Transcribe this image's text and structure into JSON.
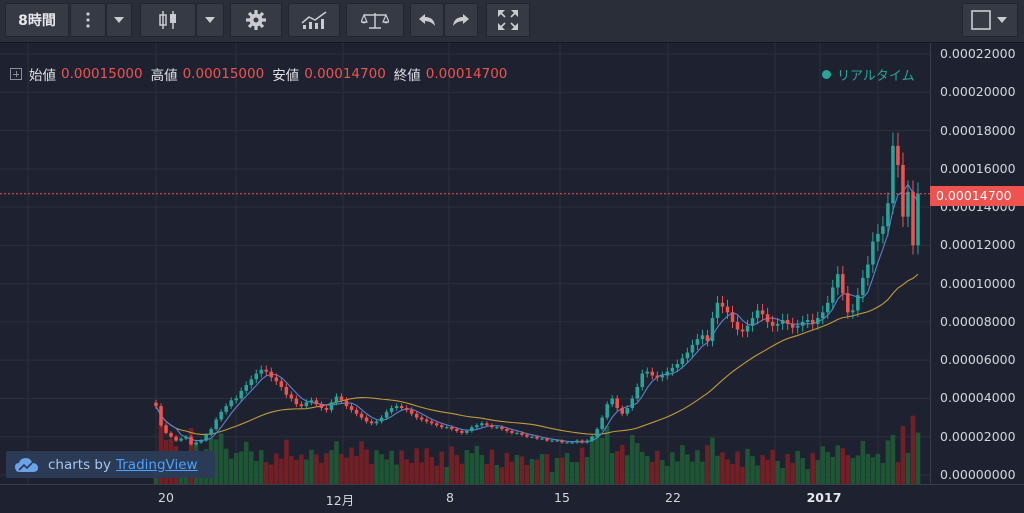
{
  "toolbar": {
    "interval_label": "8時間",
    "buttons": [
      "more-menu",
      "interval-dropdown",
      "candle-style",
      "style-dropdown",
      "settings",
      "indicators",
      "compare",
      "undo",
      "redo",
      "fullscreen",
      "layout-dropdown"
    ]
  },
  "legend": {
    "open_label": "始値",
    "open_value": "0.00015000",
    "high_label": "高値",
    "high_value": "0.00015000",
    "low_label": "安値",
    "low_value": "0.00014700",
    "close_label": "終値",
    "close_value": "0.00014700"
  },
  "realtime_label": "リアルタイム",
  "last_price_tag": "0.00014700",
  "branding": {
    "prefix": "charts by",
    "link": "TradingView"
  },
  "colors": {
    "up": "#26a69a",
    "down": "#ef5350",
    "background": "#1e2230",
    "ma_fast": "#5b7fd0",
    "ma_slow": "#c29a3a"
  },
  "chart_data": {
    "type": "candlestick",
    "y_ticks": [
      "0.00022000",
      "0.00020000",
      "0.00018000",
      "0.00016000",
      "0.00014000",
      "0.00012000",
      "0.00010000",
      "0.00008000",
      "0.00006000",
      "0.00004000",
      "0.00002000",
      "0.00000000"
    ],
    "ylim": [
      0,
      0.00022
    ],
    "x_ticks": [
      "20",
      "12月",
      "8",
      "15",
      "22",
      "2017"
    ],
    "last_price": 0.000147,
    "series": [
      {
        "name": "close",
        "values": [
          3.6e-05,
          2.6e-05,
          2.2e-05,
          2e-05,
          1.8e-05,
          1.9e-05,
          2e-05,
          1.6e-05,
          1.7e-05,
          1.8e-05,
          2.1e-05,
          2.4e-05,
          2.9e-05,
          3.3e-05,
          3.6e-05,
          3.9e-05,
          4e-05,
          4.4e-05,
          4.7e-05,
          5e-05,
          5.3e-05,
          5.5e-05,
          5.4e-05,
          5.1e-05,
          4.9e-05,
          4.6e-05,
          4.2e-05,
          4e-05,
          3.7e-05,
          3.6e-05,
          3.8e-05,
          3.9e-05,
          3.7e-05,
          3.5e-05,
          3.4e-05,
          3.8e-05,
          4.1e-05,
          3.9e-05,
          3.6e-05,
          3.4e-05,
          3.2e-05,
          3e-05,
          2.8e-05,
          2.7e-05,
          2.8e-05,
          3e-05,
          3.3e-05,
          3.5e-05,
          3.6e-05,
          3.5e-05,
          3.4e-05,
          3.2e-05,
          3e-05,
          2.9e-05,
          2.8e-05,
          2.7e-05,
          2.6e-05,
          2.5e-05,
          2.5e-05,
          2.4e-05,
          2.3e-05,
          2.2e-05,
          2.3e-05,
          2.5e-05,
          2.6e-05,
          2.7e-05,
          2.6e-05,
          2.5e-05,
          2.5e-05,
          2.4e-05,
          2.3e-05,
          2.2e-05,
          2.2e-05,
          2.1e-05,
          2e-05,
          2e-05,
          1.9e-05,
          1.9e-05,
          1.8e-05,
          1.8e-05,
          1.8e-05,
          1.7e-05,
          1.7e-05,
          1.7e-05,
          1.8e-05,
          1.7e-05,
          1.8e-05,
          2e-05,
          2.4e-05,
          3e-05,
          3.7e-05,
          4e-05,
          3.5e-05,
          3.2e-05,
          3.5e-05,
          4e-05,
          4.6e-05,
          5.3e-05,
          5.4e-05,
          5.2e-05,
          5.1e-05,
          5.2e-05,
          5.4e-05,
          5.6e-05,
          5.8e-05,
          6.1e-05,
          6.4e-05,
          6.8e-05,
          7.1e-05,
          7.3e-05,
          7e-05,
          8.2e-05,
          9e-05,
          8.8e-05,
          8.5e-05,
          8e-05,
          7.6e-05,
          7.5e-05,
          7.8e-05,
          8.2e-05,
          8.6e-05,
          8.4e-05,
          8e-05,
          7.8e-05,
          7.9e-05,
          8.1e-05,
          7.9e-05,
          7.7e-05,
          7.8e-05,
          8e-05,
          8.1e-05,
          7.9e-05,
          8.2e-05,
          8.5e-05,
          9e-05,
          9.8e-05,
          0.000105,
          9.5e-05,
          8.5e-05,
          8.6e-05,
          9.4e-05,
          0.000103,
          0.00011,
          0.000122,
          0.000126,
          0.00013,
          0.000142,
          0.000172,
          0.000162,
          0.000135,
          0.000148,
          0.00012,
          0.000147
        ]
      }
    ],
    "volume": {
      "name": "volume"
    }
  }
}
